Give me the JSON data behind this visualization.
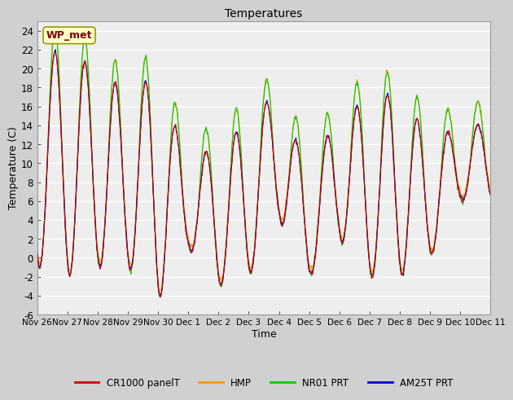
{
  "title": "Temperatures",
  "xlabel": "Time",
  "ylabel": "Temperature (C)",
  "ylim": [
    -6,
    25
  ],
  "yticks": [
    -6,
    -4,
    -2,
    0,
    2,
    4,
    6,
    8,
    10,
    12,
    14,
    16,
    18,
    20,
    22,
    24
  ],
  "xtick_labels": [
    "Nov 26",
    "Nov 27",
    "Nov 28",
    "Nov 29",
    "Nov 30",
    "Dec 1",
    "Dec 2",
    "Dec 3",
    "Dec 4",
    "Dec 5",
    "Dec 6",
    "Dec 7",
    "Dec 8",
    "Dec 9",
    "Dec 10",
    "Dec 11"
  ],
  "colors": {
    "CR1000": "#cc0000",
    "HMP": "#ff9900",
    "NR01": "#00cc00",
    "AM25T": "#0000cc"
  },
  "legend_labels": [
    "CR1000 panelT",
    "HMP",
    "NR01 PRT",
    "AM25T PRT"
  ],
  "annotation_text": "WP_met",
  "annotation_color": "#800000",
  "annotation_bg": "#ffffcc",
  "figsize": [
    6.4,
    4.8
  ],
  "dpi": 100
}
